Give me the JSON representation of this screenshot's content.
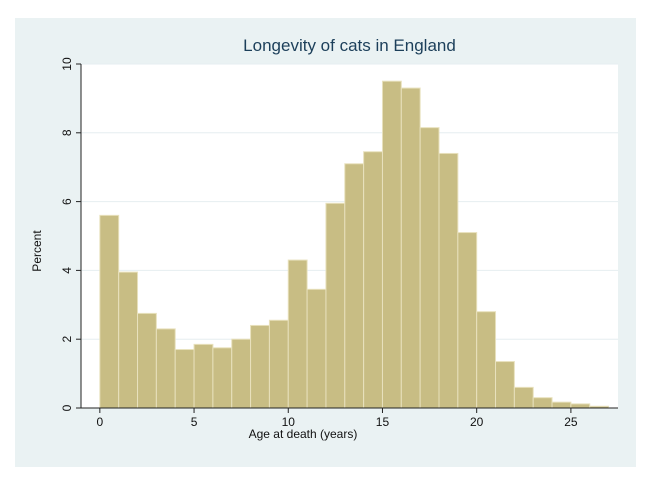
{
  "chart_data": {
    "type": "bar",
    "title": "Longevity of cats in England",
    "xlabel": "Age at death (years)",
    "ylabel": "Percent",
    "bin_width": 1,
    "x": [
      0,
      1,
      2,
      3,
      4,
      5,
      6,
      7,
      8,
      9,
      10,
      11,
      12,
      13,
      14,
      15,
      16,
      17,
      18,
      19,
      20,
      21,
      22,
      23,
      24,
      25,
      26
    ],
    "values": [
      5.6,
      3.95,
      2.75,
      2.3,
      1.7,
      1.85,
      1.75,
      2.0,
      2.4,
      2.55,
      4.3,
      3.45,
      5.95,
      7.1,
      7.45,
      9.5,
      9.3,
      8.15,
      7.4,
      5.1,
      2.8,
      1.35,
      0.6,
      0.3,
      0.17,
      0.12,
      0.05
    ],
    "xlim": [
      -1,
      27.5
    ],
    "ylim": [
      0,
      10
    ],
    "xticks": [
      0,
      5,
      10,
      15,
      20,
      25
    ],
    "yticks": [
      0,
      2,
      4,
      6,
      8,
      10
    ],
    "grid": true,
    "colors": {
      "bar_fill": "#c8bd84",
      "bar_stroke": "#e8e1bd",
      "panel_bg": "#eaf2f3",
      "plot_bg": "#ffffff",
      "grid": "#e6eef0",
      "title": "#1c3f5a",
      "axis": "#222222"
    }
  }
}
